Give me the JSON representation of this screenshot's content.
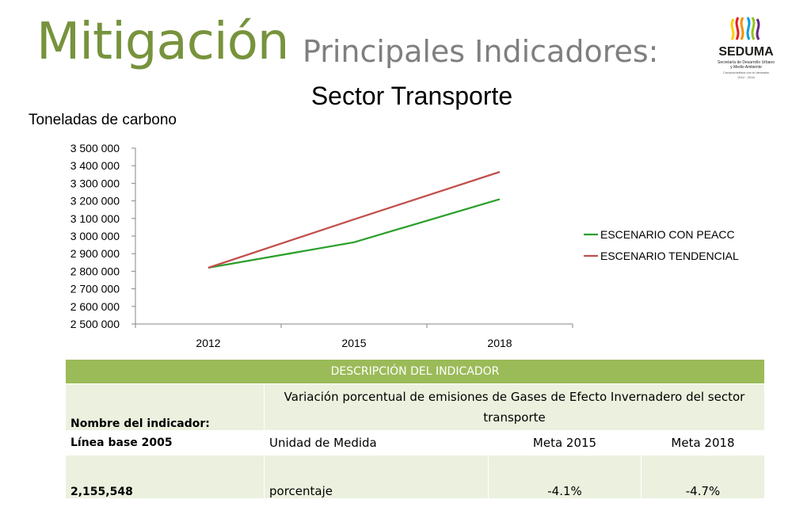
{
  "header": {
    "title": "Mitigación",
    "subtitle": "Principales Indicadores:"
  },
  "logo": {
    "name": "SEDUMA",
    "lines": [
      "Secretaría de Desarrollo Urbano",
      "y Medio Ambiente",
      "Comprometidos con tu bienestar",
      "2012 - 2018"
    ]
  },
  "chart_data": {
    "type": "line",
    "title": "Sector Transporte",
    "ylabel": "Toneladas de carbono",
    "xlabel": "",
    "categories": [
      "2012",
      "2015",
      "2018"
    ],
    "ylim": [
      2500000,
      3500000
    ],
    "yticks": [
      "2 500 000",
      "2 600 000",
      "2 700 000",
      "2 800 000",
      "2 900 000",
      "3 000 000",
      "3 100 000",
      "3 200 000",
      "3 300 000",
      "3 400 000",
      "3 500 000"
    ],
    "grid": false,
    "legend": "right",
    "series": [
      {
        "name": "ESCENARIO CON PEACC",
        "color": "#2ca02c",
        "values": [
          2820000,
          2965000,
          3210000
        ]
      },
      {
        "name": "ESCENARIO TENDENCIAL",
        "color": "#c0504d",
        "values": [
          2820000,
          3095000,
          3365000
        ]
      }
    ]
  },
  "table": {
    "header": "DESCRIPCIÓN DEL INDICADOR",
    "name_label": "Nombre del indicador:",
    "name_value": "Variación porcentual de emisiones de Gases de Efecto Invernadero del sector transporte",
    "col_baseline": "Línea base 2005",
    "col_unit": "Unidad de Medida",
    "col_goal1": "Meta 2015",
    "col_goal2": "Meta 2018",
    "baseline_value": "2,155,548",
    "unit_value": "porcentaje",
    "goal1_value": "-4.1%",
    "goal2_value": "-4.7%"
  }
}
